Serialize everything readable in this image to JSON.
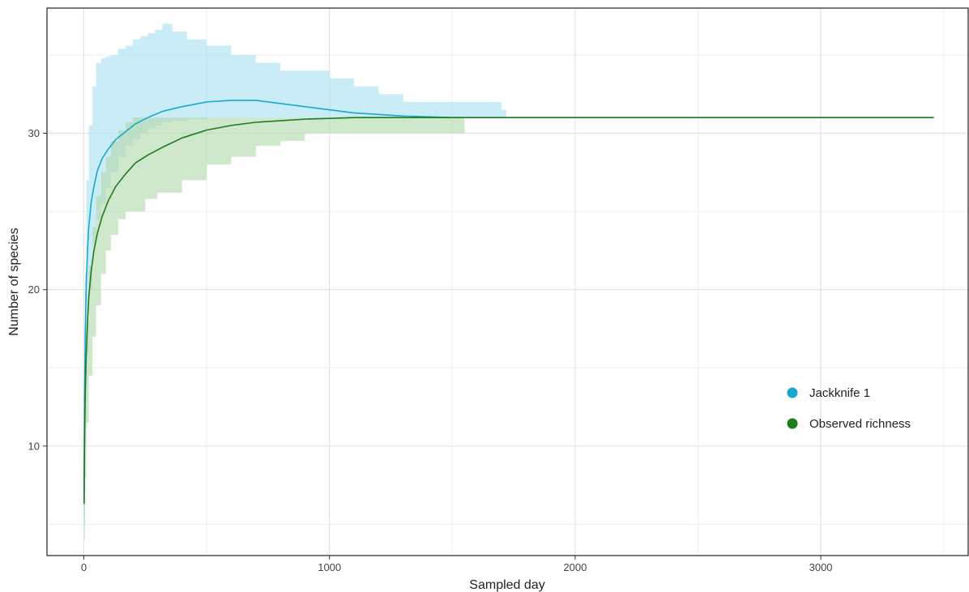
{
  "chart_data": {
    "type": "line",
    "title": "",
    "xlabel": "Sampled day",
    "ylabel": "Number of species",
    "xlim": [
      -150,
      3600
    ],
    "ylim": [
      3,
      38
    ],
    "x_ticks": [
      0,
      1000,
      2000,
      3000
    ],
    "y_ticks": [
      10,
      20,
      30
    ],
    "x_minor_grid": [
      500,
      1500,
      2500,
      3500
    ],
    "y_minor_grid": [
      5,
      15,
      25,
      35
    ],
    "grid": true,
    "legend": {
      "position": "right",
      "entries": [
        {
          "label": "Jackknife 1",
          "color": "#1aa7cf"
        },
        {
          "label": "Observed richness",
          "color": "#1e7b1e"
        }
      ]
    },
    "series": [
      {
        "name": "Jackknife 1",
        "color": "#1aa7cf",
        "band_color": "#a9e1f2",
        "line": {
          "x": [
            1,
            3,
            6,
            10,
            15,
            20,
            30,
            40,
            55,
            75,
            100,
            130,
            170,
            210,
            260,
            320,
            400,
            500,
            600,
            700,
            800,
            900,
            1000,
            1100,
            1200,
            1300,
            1400,
            1500,
            1600,
            1700,
            2000,
            2500,
            3000,
            3460
          ],
          "y": [
            7,
            13,
            17.5,
            20.5,
            22.5,
            24,
            25.6,
            26.5,
            27.6,
            28.4,
            29,
            29.6,
            30.1,
            30.6,
            31.0,
            31.4,
            31.7,
            32.0,
            32.1,
            32.1,
            31.9,
            31.7,
            31.5,
            31.3,
            31.2,
            31.1,
            31.05,
            31.0,
            31.0,
            31.0,
            31.0,
            31.0,
            31.0,
            31.0
          ]
        },
        "band": {
          "x": [
            1,
            5,
            10,
            20,
            35,
            50,
            70,
            90,
            110,
            140,
            170,
            200,
            230,
            260,
            290,
            320,
            360,
            420,
            500,
            600,
            700,
            800,
            900,
            1000,
            1100,
            1200,
            1300,
            1400,
            1500,
            1600,
            1700,
            1720
          ],
          "upper": [
            12,
            21,
            27,
            30.5,
            33,
            34.5,
            34.8,
            34.9,
            35.0,
            35.4,
            35.6,
            36.0,
            36.2,
            36.4,
            36.6,
            37.0,
            36.5,
            36.0,
            35.6,
            35.0,
            34.5,
            34.0,
            34.0,
            33.5,
            33.0,
            32.5,
            32.0,
            32.0,
            32.0,
            32.0,
            31.5,
            31.0
          ],
          "lower": [
            4,
            10,
            16,
            20,
            23,
            24.5,
            25.5,
            26.5,
            27.5,
            28.5,
            29.2,
            29.6,
            30.0,
            30.3,
            30.5,
            30.7,
            30.8,
            30.9,
            31.0,
            31.0,
            31.0,
            31.0,
            31.0,
            31.0,
            31.0,
            31.0,
            31.0,
            31.0,
            31.0,
            31.0,
            31.0,
            31.0
          ]
        }
      },
      {
        "name": "Observed richness",
        "color": "#1e7b1e",
        "band_color": "#b2d8aa",
        "line": {
          "x": [
            1,
            3,
            6,
            10,
            15,
            20,
            30,
            40,
            55,
            75,
            100,
            130,
            170,
            210,
            260,
            320,
            400,
            500,
            600,
            700,
            800,
            900,
            1000,
            1100,
            1200,
            1300,
            1400,
            1500,
            1600,
            2000,
            2500,
            3000,
            3460
          ],
          "y": [
            6.3,
            10.5,
            13.5,
            16,
            18,
            19.5,
            21.2,
            22.4,
            23.6,
            24.7,
            25.7,
            26.6,
            27.4,
            28.1,
            28.6,
            29.1,
            29.7,
            30.2,
            30.5,
            30.7,
            30.8,
            30.9,
            30.95,
            31.0,
            31.0,
            31.0,
            31.0,
            31.0,
            31.0,
            31.0,
            31.0,
            31.0,
            31.0
          ]
        },
        "band": {
          "x": [
            1,
            5,
            10,
            20,
            35,
            50,
            70,
            90,
            110,
            140,
            170,
            200,
            250,
            300,
            400,
            500,
            600,
            700,
            800,
            900,
            1000,
            1100,
            1200,
            1300,
            1400,
            1500,
            1550
          ],
          "upper": [
            8,
            14,
            18,
            21.5,
            24,
            26,
            27.5,
            28.5,
            29.5,
            30.2,
            30.7,
            31.0,
            31.0,
            31.0,
            31.0,
            31.0,
            31.0,
            31.0,
            31.0,
            31.0,
            31.0,
            31.0,
            31.0,
            31.0,
            31.0,
            31.0,
            31.0
          ],
          "lower": [
            5,
            8,
            11.5,
            14.5,
            17,
            19,
            21,
            22.5,
            23.5,
            24.5,
            25,
            25,
            25.8,
            26.2,
            27,
            28,
            28.5,
            29.2,
            29.5,
            30,
            30,
            30,
            30,
            30,
            30,
            30,
            31.0
          ]
        }
      }
    ]
  }
}
